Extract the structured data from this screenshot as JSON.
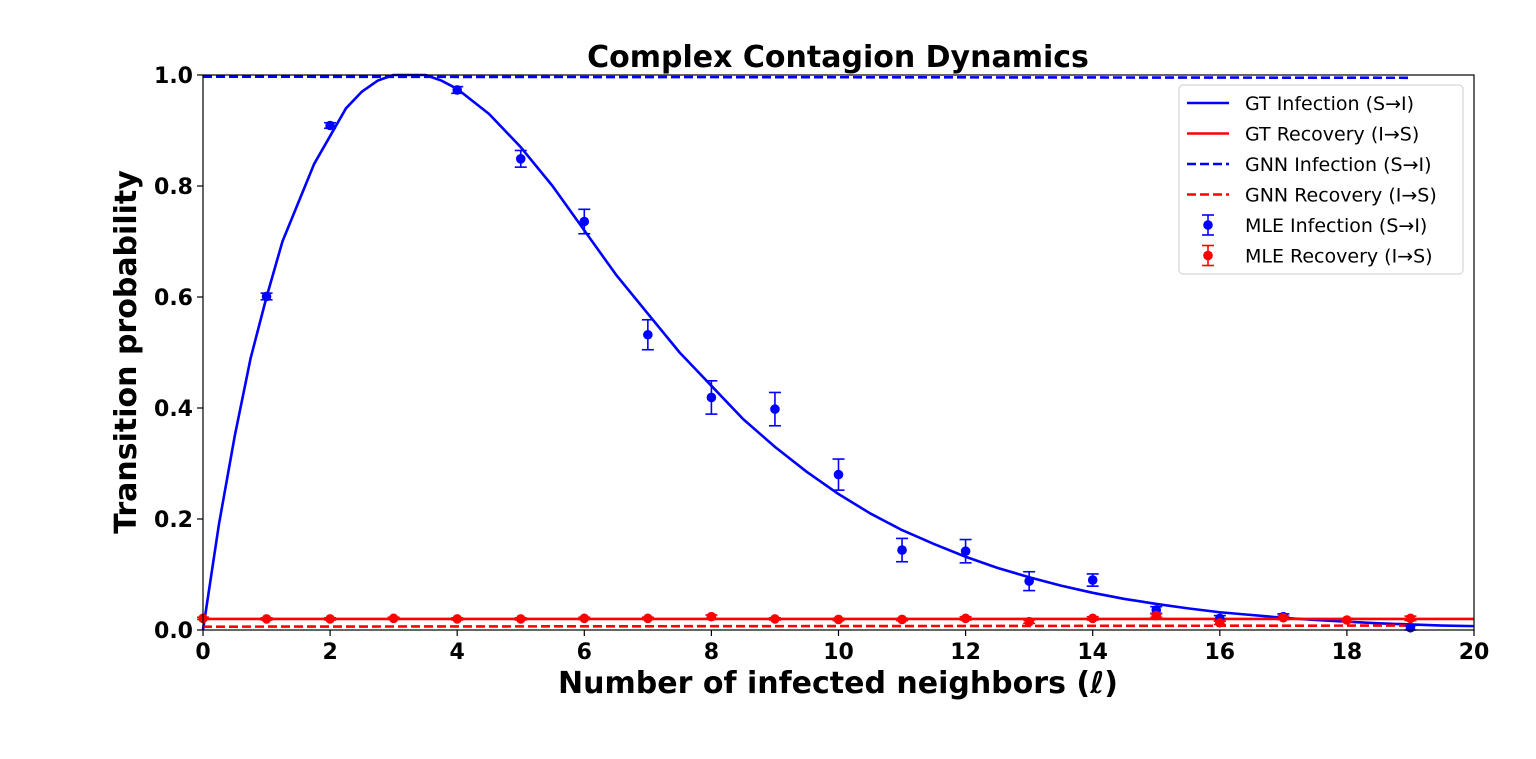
{
  "chart_data": {
    "type": "line",
    "title": "Complex Contagion Dynamics",
    "xlabel": "Number of infected neighbors (ℓ)",
    "ylabel": "Transition probability",
    "xlim": [
      0,
      20
    ],
    "ylim": [
      0,
      1.0
    ],
    "xticks": [
      0,
      2,
      4,
      6,
      8,
      10,
      12,
      14,
      16,
      18,
      20
    ],
    "yticks": [
      0.0,
      0.2,
      0.4,
      0.6,
      0.8,
      1.0
    ],
    "xtick_labels": [
      "0",
      "2",
      "4",
      "6",
      "8",
      "10",
      "12",
      "14",
      "16",
      "18",
      "20"
    ],
    "ytick_labels": [
      "0.0",
      "0.2",
      "0.4",
      "0.6",
      "0.8",
      "1.0"
    ],
    "grid": false,
    "legend_position": "top-right",
    "series": [
      {
        "name": "GT Infection (S→I)",
        "kind": "line",
        "style": "solid",
        "color": "#0000ff",
        "x": [
          0,
          0.25,
          0.5,
          0.75,
          1,
          1.25,
          1.5,
          1.75,
          2,
          2.25,
          2.5,
          2.75,
          3,
          3.25,
          3.5,
          3.75,
          4,
          4.5,
          5,
          5.5,
          6,
          6.5,
          7,
          7.5,
          8,
          8.5,
          9,
          9.5,
          10,
          10.5,
          11,
          11.5,
          12,
          12.5,
          13,
          13.5,
          14,
          14.5,
          15,
          15.5,
          16,
          16.5,
          17,
          17.5,
          18,
          18.5,
          19,
          19.5,
          20
        ],
        "y": [
          0.0,
          0.19,
          0.35,
          0.49,
          0.6,
          0.7,
          0.77,
          0.84,
          0.89,
          0.94,
          0.97,
          0.99,
          1.0,
          1.0,
          1.0,
          0.99,
          0.975,
          0.93,
          0.87,
          0.8,
          0.72,
          0.64,
          0.57,
          0.5,
          0.44,
          0.38,
          0.33,
          0.285,
          0.245,
          0.21,
          0.18,
          0.155,
          0.132,
          0.112,
          0.095,
          0.08,
          0.067,
          0.056,
          0.047,
          0.039,
          0.032,
          0.027,
          0.022,
          0.018,
          0.015,
          0.012,
          0.01,
          0.008,
          0.007
        ]
      },
      {
        "name": "GT Recovery (I→S)",
        "kind": "line",
        "style": "solid",
        "color": "#ff0000",
        "x": [
          0,
          20
        ],
        "y": [
          0.02,
          0.02
        ]
      },
      {
        "name": "GNN Infection (S→I)",
        "kind": "line",
        "style": "dashed",
        "color": "#0000ff",
        "x": [
          0,
          19
        ],
        "y": [
          0.997,
          0.995
        ]
      },
      {
        "name": "GNN Recovery (I→S)",
        "kind": "line",
        "style": "dashed",
        "color": "#ff0000",
        "x": [
          0,
          19
        ],
        "y": [
          0.006,
          0.008
        ]
      },
      {
        "name": "MLE Infection (S→I)",
        "kind": "errorbar",
        "color": "#0000ff",
        "x": [
          1,
          2,
          4,
          5,
          6,
          7,
          8,
          9,
          10,
          11,
          12,
          13,
          14,
          15,
          16,
          17,
          19
        ],
        "y": [
          0.601,
          0.909,
          0.973,
          0.849,
          0.736,
          0.532,
          0.419,
          0.398,
          0.28,
          0.144,
          0.142,
          0.088,
          0.09,
          0.036,
          0.021,
          0.024,
          0.004
        ],
        "err": [
          0.006,
          0.005,
          0.006,
          0.015,
          0.022,
          0.027,
          0.03,
          0.03,
          0.028,
          0.021,
          0.021,
          0.017,
          0.011,
          0.006,
          0.005,
          0.005,
          0.004
        ]
      },
      {
        "name": "MLE Recovery (I→S)",
        "kind": "errorbar",
        "color": "#ff0000",
        "x": [
          0,
          1,
          2,
          3,
          4,
          5,
          6,
          7,
          8,
          9,
          10,
          11,
          12,
          13,
          14,
          15,
          16,
          17,
          18,
          19
        ],
        "y": [
          0.021,
          0.02,
          0.02,
          0.021,
          0.02,
          0.02,
          0.021,
          0.021,
          0.024,
          0.02,
          0.019,
          0.019,
          0.021,
          0.015,
          0.021,
          0.026,
          0.013,
          0.022,
          0.018,
          0.021
        ],
        "err": [
          0.002,
          0.002,
          0.002,
          0.002,
          0.002,
          0.002,
          0.002,
          0.002,
          0.003,
          0.002,
          0.002,
          0.002,
          0.003,
          0.003,
          0.003,
          0.003,
          0.003,
          0.003,
          0.003,
          0.004
        ]
      }
    ]
  }
}
